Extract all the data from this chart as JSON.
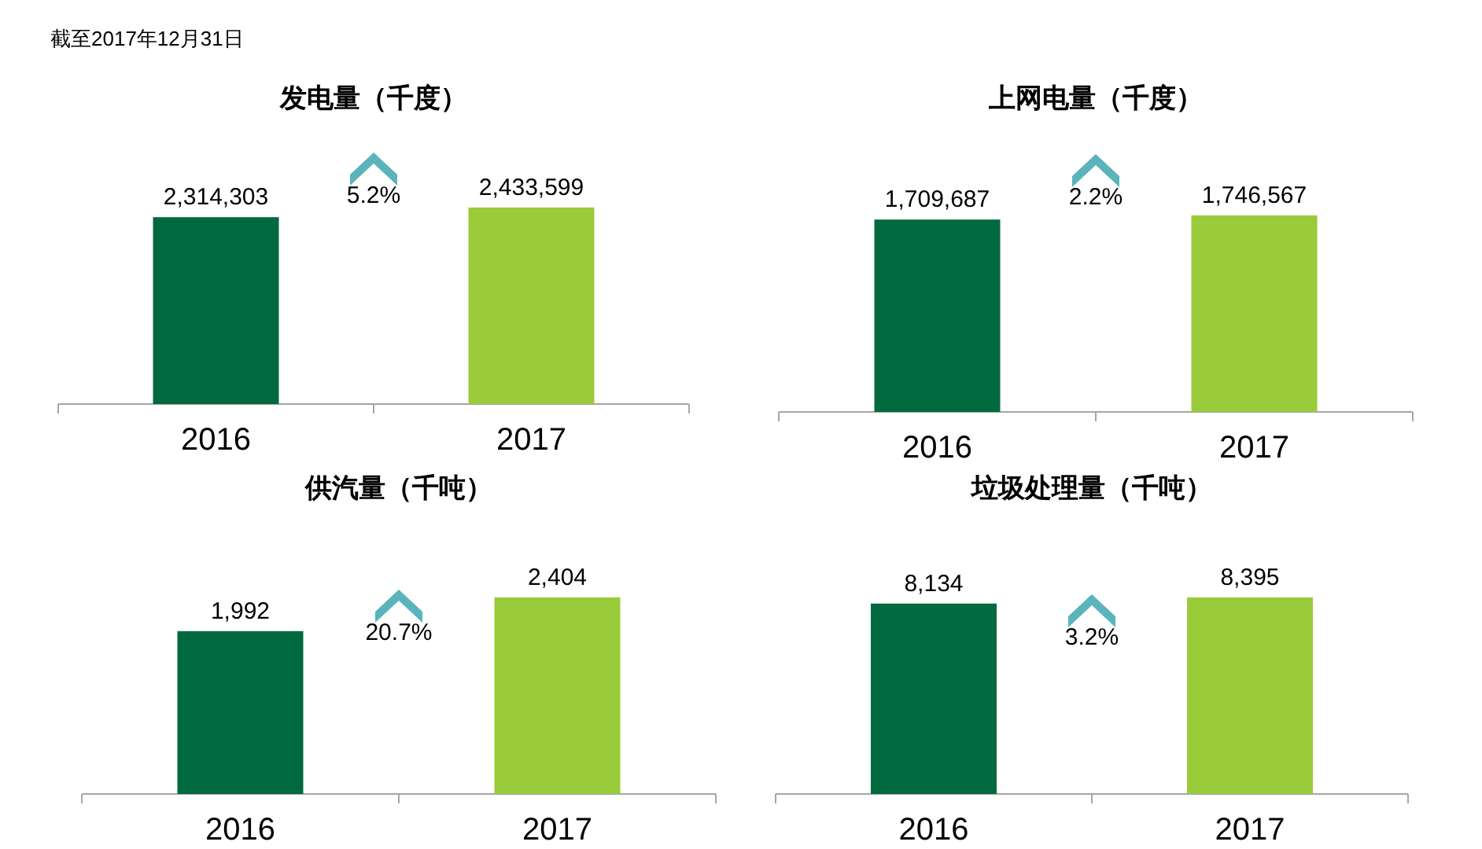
{
  "chart_data": [
    {
      "type": "bar",
      "title": "发电量（千度）",
      "categories": [
        "2016",
        "2017"
      ],
      "values": [
        2314303,
        2433599
      ],
      "value_labels": [
        "2,314,303",
        "2,433,599"
      ],
      "colors": [
        "#006a3e",
        "#9acb3b"
      ],
      "annotations": [
        "截至2017年12月31日",
        "5.2%"
      ]
    },
    {
      "type": "bar",
      "title": "上网电量（千度）",
      "categories": [
        "2016",
        "2017"
      ],
      "values": [
        1709687,
        1746567
      ],
      "value_labels": [
        "1,709,687",
        "1,746,567"
      ],
      "colors": [
        "#006a3e",
        "#9acb3b"
      ],
      "annotations": [
        "2.2%"
      ]
    },
    {
      "type": "bar",
      "title": "供汽量（千吨）",
      "categories": [
        "2016",
        "2017"
      ],
      "values": [
        1992,
        2404
      ],
      "value_labels": [
        "1,992",
        "2,404"
      ],
      "colors": [
        "#006a3e",
        "#9acb3b"
      ],
      "annotations": [
        "20.7%"
      ]
    },
    {
      "type": "bar",
      "title": "垃圾处理量（千吨）",
      "categories": [
        "2016",
        "2017"
      ],
      "values": [
        8134,
        8395
      ],
      "value_labels": [
        "8,134",
        "8,395"
      ],
      "colors": [
        "#006a3e",
        "#9acb3b"
      ],
      "annotations": [
        "3.2%"
      ]
    }
  ]
}
